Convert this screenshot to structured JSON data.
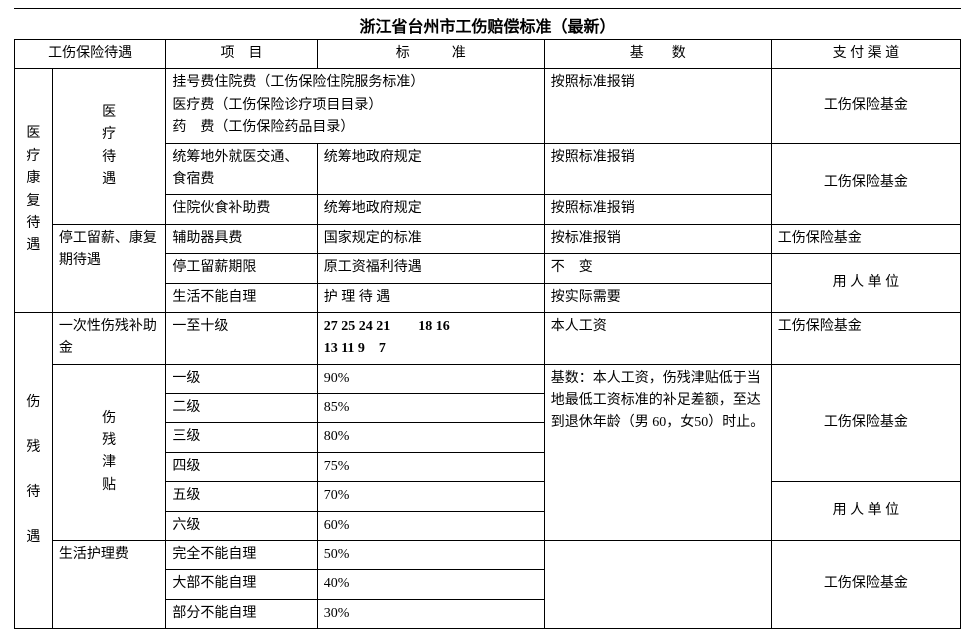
{
  "title": "浙江省台州市工伤赔偿标准（最新）",
  "headers": {
    "c1": "工伤保险待遇",
    "c2": "项　目",
    "c3": "标　　　准",
    "c4": "基　　数",
    "c5": "支 付 渠 道"
  },
  "col1": {
    "g1": [
      "医",
      "疗",
      "康",
      "复",
      "待",
      "遇"
    ],
    "g2": [
      "伤",
      "",
      "残",
      "",
      "待",
      "",
      "遇"
    ]
  },
  "col2": {
    "a": [
      "医",
      "疗",
      "待",
      "遇"
    ],
    "b": "停工留薪、康复期待遇",
    "c": "一次性伤残补助金",
    "d": [
      "伤",
      "残",
      "津",
      "贴"
    ],
    "e": "生活护理费"
  },
  "medical": {
    "r1_item_lines": [
      "挂号费住院费（工伤保险住院服务标准）",
      "医疗费（工伤保险诊疗项目目录）",
      "药　费（工伤保险药品目录）"
    ],
    "r1_base": "按照标准报销",
    "r1_pay": "工伤保险基金",
    "r2_item": "统筹地外就医交通、食宿费",
    "r2_std": "统筹地政府规定",
    "r2_base": "按照标准报销",
    "r23_pay": "工伤保险基金",
    "r3_item": "住院伙食补助费",
    "r3_std": "统筹地政府规定",
    "r3_base": "按照标准报销"
  },
  "stop": {
    "r4_item": "辅助器具费",
    "r4_std": "国家规定的标准",
    "r4_base": "按标准报销",
    "r4_pay": "工伤保险基金",
    "r5_item": "停工留薪期限",
    "r5_std": "原工资福利待遇",
    "r5_base": "不　变",
    "r56_pay": "用 人 单 位",
    "r6_item": "生活不能自理",
    "r6_std": "护 理 待 遇",
    "r6_base": "按实际需要"
  },
  "lump": {
    "item": "一至十级",
    "std_l1": "27 25 24 21　　18 16",
    "std_l2": "13 11 9　7",
    "base": "本人工资",
    "pay": "工伤保险基金"
  },
  "allowance": {
    "base_note": "基数：本人工资，伤残津贴低于当地最低工资标准的补足差额，至达到退休年龄（男 60，女50）时止。",
    "pay14": "工伤保险基金",
    "pay56": "用 人 单 位",
    "rows": [
      {
        "item": "一级",
        "std": "90%"
      },
      {
        "item": "二级",
        "std": "85%"
      },
      {
        "item": "三级",
        "std": "80%"
      },
      {
        "item": "四级",
        "std": "75%"
      },
      {
        "item": "五级",
        "std": "70%"
      },
      {
        "item": "六级",
        "std": "60%"
      }
    ]
  },
  "care": {
    "pay": "工伤保险基金",
    "rows": [
      {
        "item": "完全不能自理",
        "std": "50%"
      },
      {
        "item": "大部不能自理",
        "std": "40%"
      },
      {
        "item": "部分不能自理",
        "std": "30%"
      }
    ]
  },
  "colors": {
    "text": "#000000",
    "border": "#000000",
    "bg": "#ffffff"
  }
}
